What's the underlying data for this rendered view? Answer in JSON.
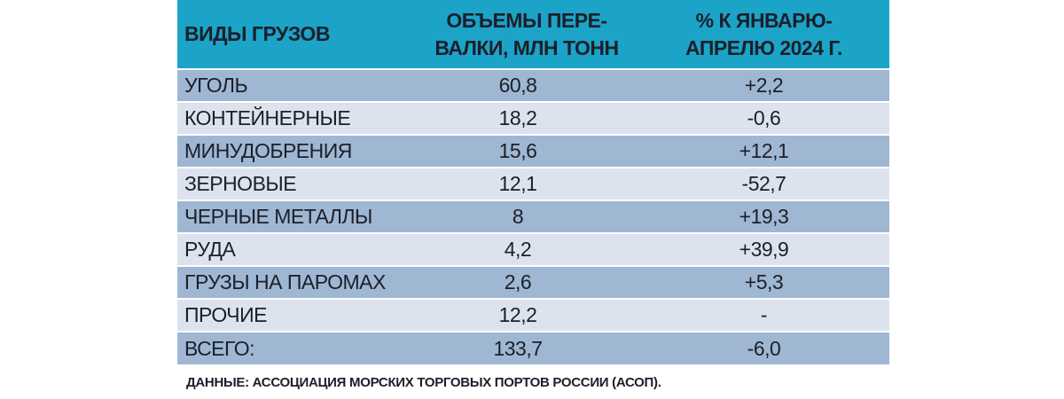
{
  "table": {
    "header": [
      [
        "ВИДЫ ГРУЗОВ"
      ],
      [
        "ОБЪЕМЫ ПЕРЕ-",
        "ВАЛКИ, МЛН ТОНН"
      ],
      [
        "% К ЯНВАРЮ-",
        "АПРЕЛЮ 2024 Г."
      ]
    ],
    "rows": [
      [
        "УГОЛЬ",
        "60,8",
        "+2,2"
      ],
      [
        "КОНТЕЙНЕРНЫЕ",
        "18,2",
        "-0,6"
      ],
      [
        "МИНУДОБРЕНИЯ",
        "15,6",
        "+12,1"
      ],
      [
        "ЗЕРНОВЫЕ",
        "12,1",
        "-52,7"
      ],
      [
        "ЧЕРНЫЕ МЕТАЛЛЫ",
        "8",
        "+19,3"
      ],
      [
        "РУДА",
        "4,2",
        "+39,9"
      ],
      [
        "ГРУЗЫ НА ПАРОМАХ",
        "2,6",
        "+5,3"
      ],
      [
        "ПРОЧИЕ",
        "12,2",
        "-"
      ],
      [
        "ВСЕГО:",
        "133,7",
        "-6,0"
      ]
    ],
    "source": "ДАННЫЕ: АССОЦИАЦИЯ МОРСКИХ ТОРГОВЫХ ПОРТОВ РОССИИ (АСОП)."
  }
}
